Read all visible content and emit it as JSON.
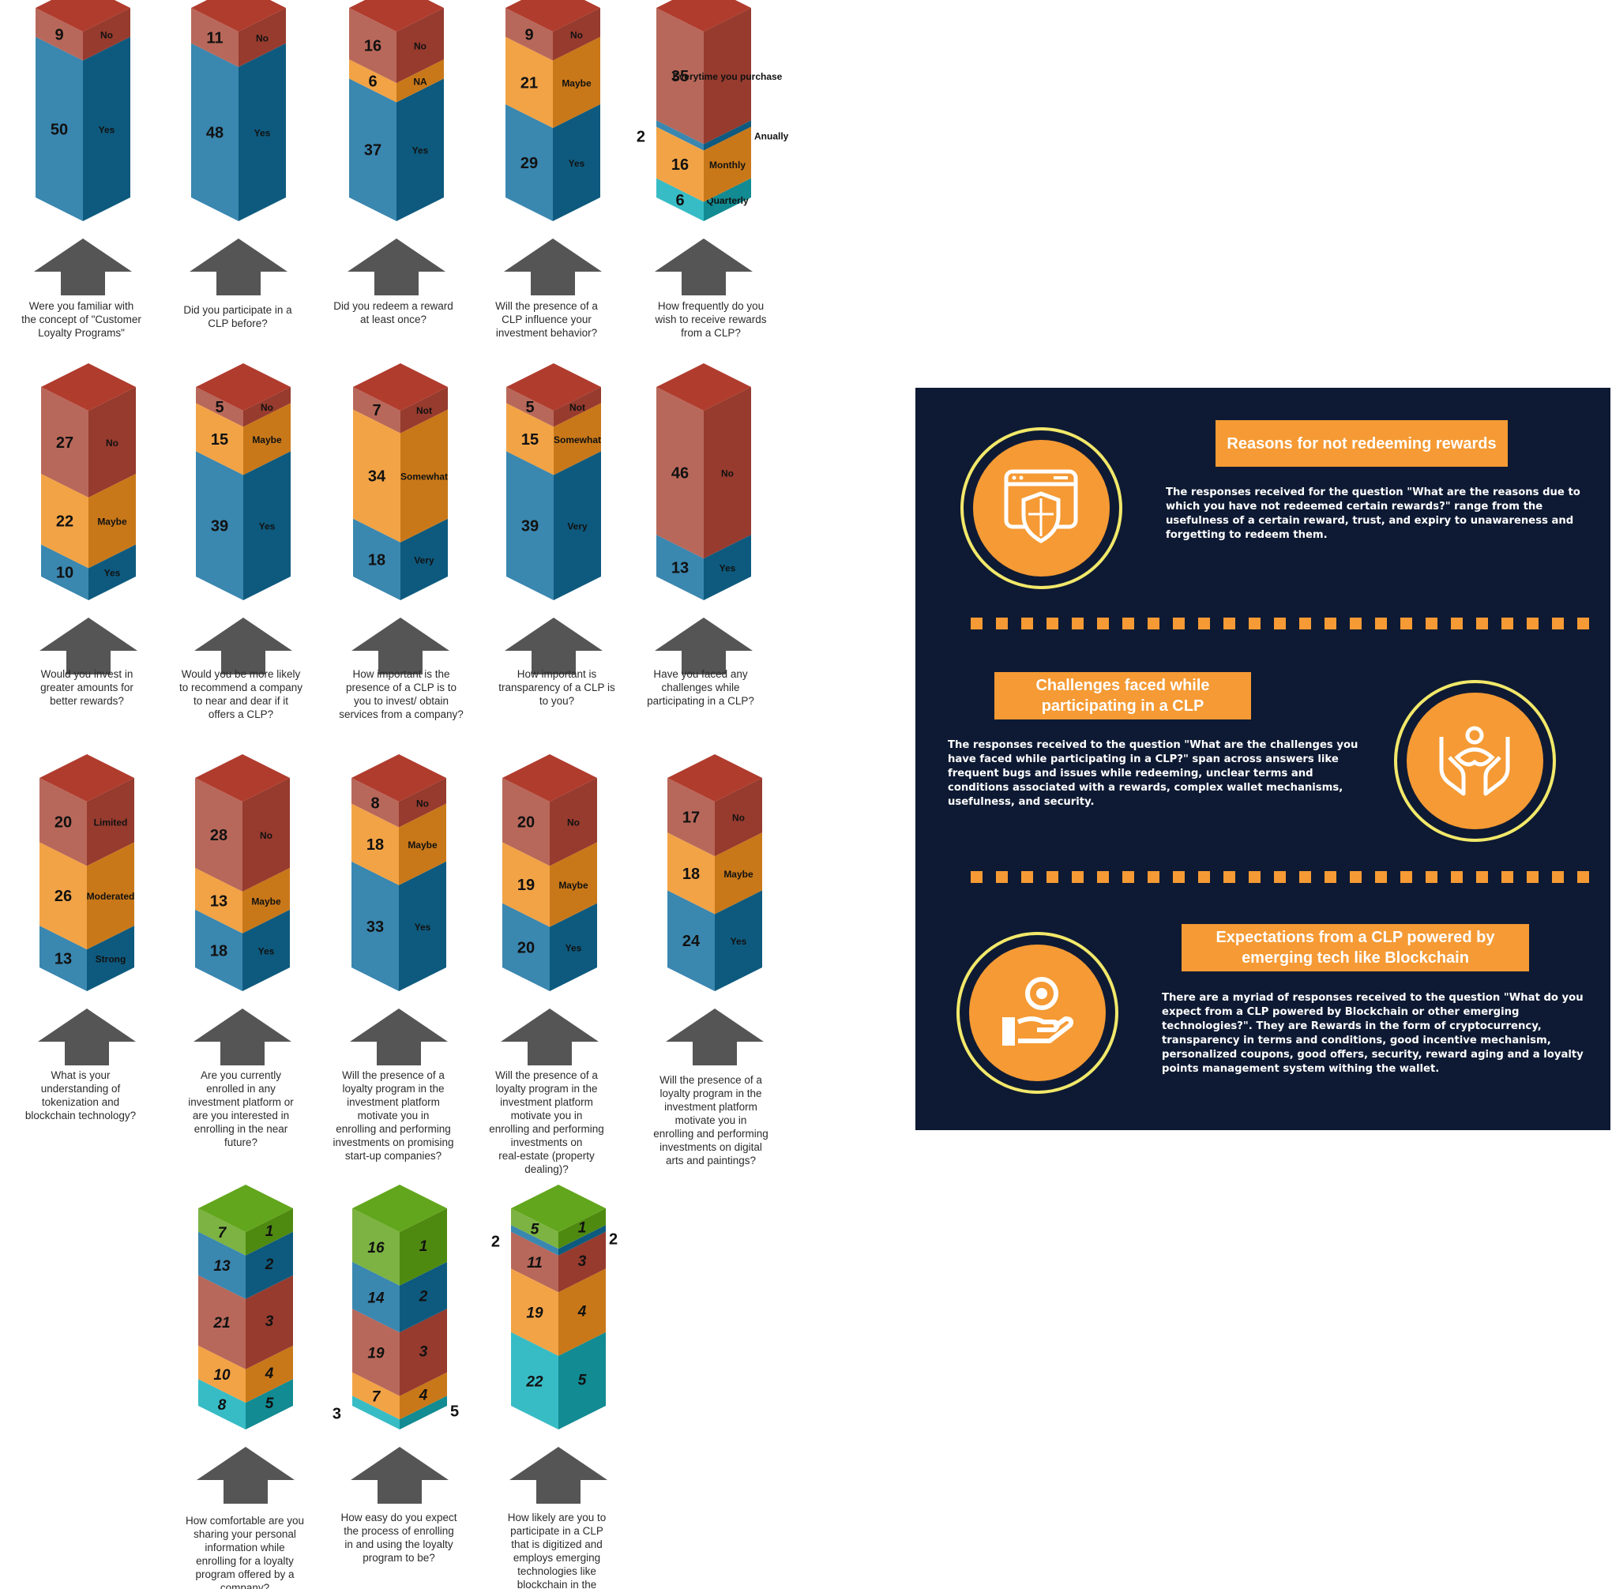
{
  "chart_data": [
    {
      "type": "bar",
      "question": "Were you familiar with the concept of \"Customer Loyalty Programs\"",
      "segments": [
        {
          "value": 50,
          "label": "Yes",
          "color": "blue"
        },
        {
          "value": 9,
          "label": "No",
          "color": "red"
        }
      ]
    },
    {
      "type": "bar",
      "question": "Did you participate in a CLP before?",
      "segments": [
        {
          "value": 48,
          "label": "Yes",
          "color": "blue"
        },
        {
          "value": 11,
          "label": "No",
          "color": "red"
        }
      ]
    },
    {
      "type": "bar",
      "question": "Did you redeem a reward at least once?",
      "segments": [
        {
          "value": 37,
          "label": "Yes",
          "color": "blue"
        },
        {
          "value": 6,
          "label": "NA",
          "color": "orange"
        },
        {
          "value": 16,
          "label": "No",
          "color": "red"
        }
      ]
    },
    {
      "type": "bar",
      "question": "Will the presence of a CLP influence your investment behavior?",
      "segments": [
        {
          "value": 29,
          "label": "Yes",
          "color": "blue"
        },
        {
          "value": 21,
          "label": "Maybe",
          "color": "orange"
        },
        {
          "value": 9,
          "label": "No",
          "color": "red"
        }
      ]
    },
    {
      "type": "bar",
      "question": "How frequently do you wish to receive rewards from a CLP?",
      "segments": [
        {
          "value": 6,
          "label": "Quarterly",
          "color": "teal"
        },
        {
          "value": 16,
          "label": "Monthly",
          "color": "orange"
        },
        {
          "value": 2,
          "label": "Anually",
          "color": "blue"
        },
        {
          "value": 35,
          "label": "Everytime you purchase",
          "color": "red"
        }
      ]
    },
    {
      "type": "bar",
      "question": "Would you invest in greater amounts for better rewards?",
      "segments": [
        {
          "value": 10,
          "label": "Yes",
          "color": "blue"
        },
        {
          "value": 22,
          "label": "Maybe",
          "color": "orange"
        },
        {
          "value": 27,
          "label": "No",
          "color": "red"
        }
      ]
    },
    {
      "type": "bar",
      "question": "Would you be more likely to recommend a company to near and dear if it offers a CLP?",
      "segments": [
        {
          "value": 39,
          "label": "Yes",
          "color": "blue"
        },
        {
          "value": 15,
          "label": "Maybe",
          "color": "orange"
        },
        {
          "value": 5,
          "label": "No",
          "color": "red"
        }
      ]
    },
    {
      "type": "bar",
      "question": "How important is the presence of a CLP is to you to invest/ obtain services from a company?",
      "segments": [
        {
          "value": 18,
          "label": "Very",
          "color": "blue"
        },
        {
          "value": 34,
          "label": "Somewhat",
          "color": "orange"
        },
        {
          "value": 7,
          "label": "Not",
          "color": "red"
        }
      ]
    },
    {
      "type": "bar",
      "question": "How important is transparency of a CLP is to you?",
      "segments": [
        {
          "value": 39,
          "label": "Very",
          "color": "blue"
        },
        {
          "value": 15,
          "label": "Somewhat",
          "color": "orange"
        },
        {
          "value": 5,
          "label": "Not",
          "color": "red"
        }
      ]
    },
    {
      "type": "bar",
      "question": "Have you faced any challenges while participating in a CLP?",
      "segments": [
        {
          "value": 13,
          "label": "Yes",
          "color": "blue"
        },
        {
          "value": 46,
          "label": "No",
          "color": "red"
        }
      ]
    },
    {
      "type": "bar",
      "question": "What is your understanding of tokenization and blockchain technology?",
      "segments": [
        {
          "value": 13,
          "label": "Strong",
          "color": "blue"
        },
        {
          "value": 26,
          "label": "Moderated",
          "color": "orange"
        },
        {
          "value": 20,
          "label": "Limited",
          "color": "red"
        }
      ]
    },
    {
      "type": "bar",
      "question": "Are you currently enrolled in any investment platform or are you interested in enrolling in the near future?",
      "segments": [
        {
          "value": 18,
          "label": "Yes",
          "color": "blue"
        },
        {
          "value": 13,
          "label": "Maybe",
          "color": "orange"
        },
        {
          "value": 28,
          "label": "No",
          "color": "red"
        }
      ]
    },
    {
      "type": "bar",
      "question": "Will the presence of a loyalty program in the investment platform motivate you in enrolling and performing investments on promising start-up companies?",
      "segments": [
        {
          "value": 33,
          "label": "Yes",
          "color": "blue"
        },
        {
          "value": 18,
          "label": "Maybe",
          "color": "orange"
        },
        {
          "value": 8,
          "label": "No",
          "color": "red"
        }
      ]
    },
    {
      "type": "bar",
      "question": "Will the presence of a loyalty program in the investment platform motivate you in enrolling and performing investments on real-estate (property dealing)?",
      "segments": [
        {
          "value": 20,
          "label": "Yes",
          "color": "blue"
        },
        {
          "value": 19,
          "label": "Maybe",
          "color": "orange"
        },
        {
          "value": 20,
          "label": "No",
          "color": "red"
        }
      ]
    },
    {
      "type": "bar",
      "question": "Will the presence of a loyalty program in the investment platform motivate you in enrolling and performing investments on digital arts and paintings?",
      "segments": [
        {
          "value": 24,
          "label": "Yes",
          "color": "blue"
        },
        {
          "value": 18,
          "label": "Maybe",
          "color": "orange"
        },
        {
          "value": 17,
          "label": "No",
          "color": "red"
        }
      ]
    },
    {
      "type": "bar",
      "question": "How comfortable are you sharing your personal information while enrolling for a loyalty program offered by a company?",
      "segments": [
        {
          "value": 8,
          "label": "5",
          "color": "teal"
        },
        {
          "value": 10,
          "label": "4",
          "color": "orange"
        },
        {
          "value": 21,
          "label": "3",
          "color": "red"
        },
        {
          "value": 13,
          "label": "2",
          "color": "blue"
        },
        {
          "value": 7,
          "label": "1",
          "color": "green"
        }
      ]
    },
    {
      "type": "bar",
      "question": "How easy do you expect the process of enrolling in and using the loyalty program to be?",
      "segments": [
        {
          "value": 3,
          "label": "5",
          "color": "teal"
        },
        {
          "value": 7,
          "label": "4",
          "color": "orange"
        },
        {
          "value": 19,
          "label": "3",
          "color": "red"
        },
        {
          "value": 14,
          "label": "2",
          "color": "blue"
        },
        {
          "value": 16,
          "label": "1",
          "color": "green"
        }
      ]
    },
    {
      "type": "bar",
      "question": "How likely are you to participate in a CLP that is digitized and employs emerging technologies like blockchain in the future?",
      "segments": [
        {
          "value": 22,
          "label": "5",
          "color": "teal"
        },
        {
          "value": 19,
          "label": "4",
          "color": "orange"
        },
        {
          "value": 11,
          "label": "3",
          "color": "red"
        },
        {
          "value": 2,
          "label": "2",
          "color": "blue"
        },
        {
          "value": 5,
          "label": "1",
          "color": "green"
        }
      ]
    }
  ],
  "panel": {
    "sections": [
      {
        "title": "Reasons for not redeeming rewards",
        "body": "The responses received for the question \"What are the reasons due to which you have not redeemed certain rewards?\" range from the usefulness of a certain reward, trust, and expiry to unawareness and forgetting to redeem them.",
        "icon": "browser-shield-icon"
      },
      {
        "title": "Challenges faced while participating in a CLP",
        "body": "The responses received to the question \"What are the challenges you have faced while participating in a CLP?\" span across answers like frequent bugs and issues while redeeming, unclear terms and conditions associated with a rewards, complex wallet mechanisms, usefulness, and security.",
        "icon": "hands-person-icon"
      },
      {
        "title": "Expectations from a CLP powered by emerging tech like Blockchain",
        "body": "There are a myriad of responses received to the question \"What do you expect from a CLP powered by Blockchain or other emerging technologies?\". They are Rewards in the form of cryptocurrency, transparency in terms and conditions, good incentive mechanism, personalized coupons, good offers, security, reward aging and a loyalty points management system withing the wallet.",
        "icon": "hand-coin-icon"
      }
    ],
    "colors": {
      "background": "#0e1a33",
      "accent": "#f59a34",
      "ring": "#f2e86a"
    }
  }
}
